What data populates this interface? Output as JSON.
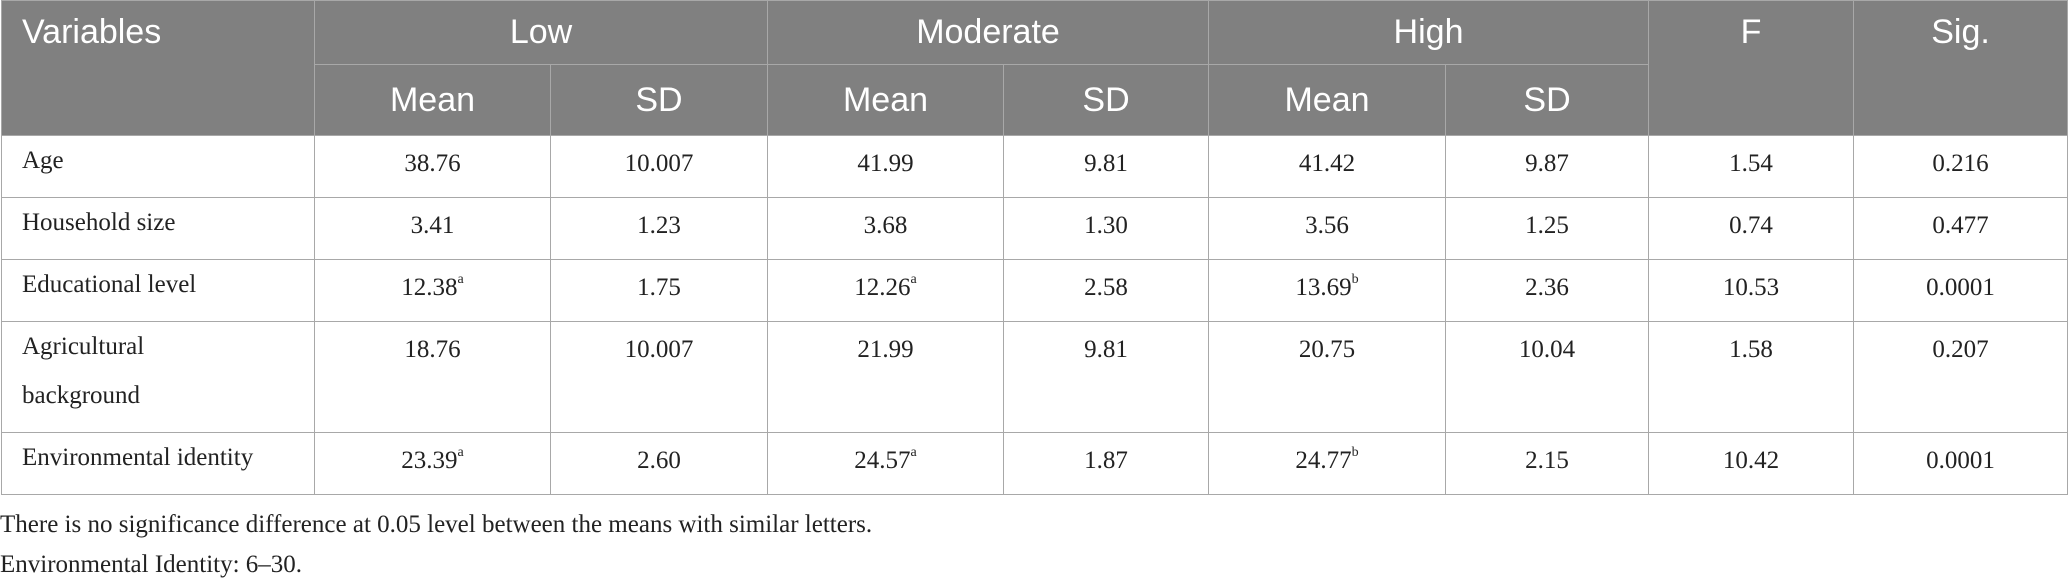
{
  "table": {
    "header": {
      "variables": "Variables",
      "groups": [
        "Low",
        "Moderate",
        "High"
      ],
      "sub": [
        "Mean",
        "SD",
        "Mean",
        "SD",
        "Mean",
        "SD"
      ],
      "f": "F",
      "sig": "Sig."
    },
    "rows": [
      [
        "Age",
        "38.76",
        "10.007",
        "41.99",
        "9.81",
        "41.42",
        "9.87",
        "1.54",
        "0.216"
      ],
      [
        "Household size",
        "3.41",
        "1.23",
        "3.68",
        "1.30",
        "3.56",
        "1.25",
        "0.74",
        "0.477"
      ],
      [
        "Educational level",
        {
          "text": "12.38",
          "sup": "a"
        },
        "1.75",
        {
          "text": "12.26",
          "sup": "a"
        },
        "2.58",
        {
          "text": "13.69",
          "sup": "b"
        },
        "2.36",
        "10.53",
        "0.0001"
      ],
      [
        "Agricultural\nbackground",
        "18.76",
        "10.007",
        "21.99",
        "9.81",
        "20.75",
        "10.04",
        "1.58",
        "0.207"
      ],
      [
        "Environmental identity",
        {
          "text": "23.39",
          "sup": "a"
        },
        "2.60",
        {
          "text": "24.57",
          "sup": "a"
        },
        "1.87",
        {
          "text": "24.77",
          "sup": "b"
        },
        "2.15",
        "10.42",
        "0.0001"
      ]
    ]
  },
  "notes": [
    "There is no significance difference at 0.05 level between the means with similar letters.",
    "Environmental Identity: 6–30."
  ]
}
